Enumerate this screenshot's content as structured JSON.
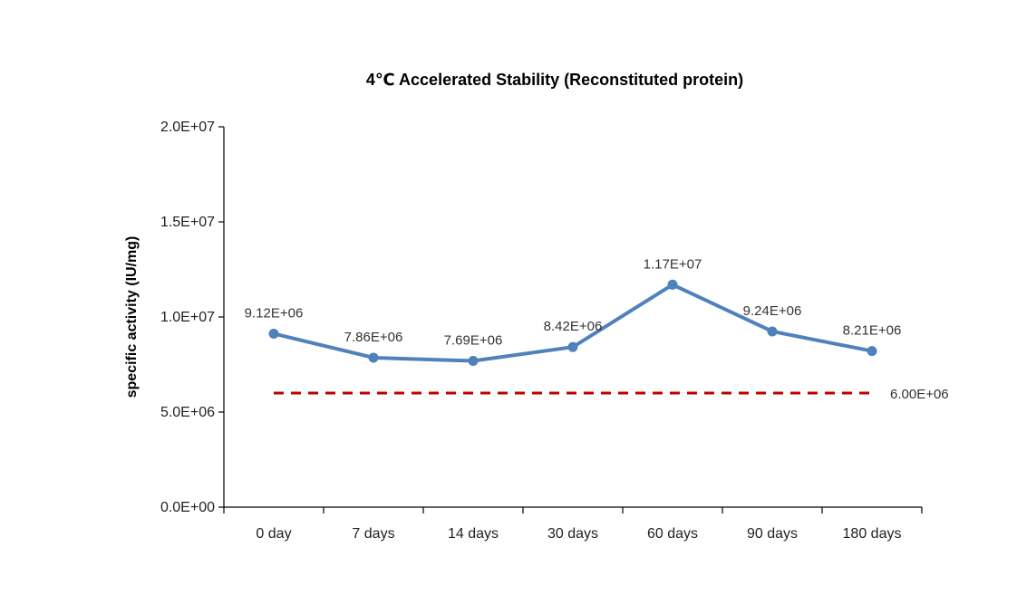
{
  "chart_data": {
    "type": "line",
    "title": "4℃ Accelerated  Stability (Reconstituted protein)",
    "xlabel": "",
    "ylabel": "specific activity (IU/mg)",
    "categories": [
      "0 day",
      "7 days",
      "14 days",
      "30 days",
      "60 days",
      "90 days",
      "180 days"
    ],
    "ylim": [
      0,
      20000000
    ],
    "yticks": [
      0,
      5000000,
      10000000,
      15000000,
      20000000
    ],
    "ytick_labels": [
      "0.0E+00",
      "5.0E+06",
      "1.0E+07",
      "1.5E+07",
      "2.0E+07"
    ],
    "series": [
      {
        "values": [
          9120000,
          7860000,
          7690000,
          8420000,
          11700000,
          9240000,
          8210000
        ],
        "data_labels": [
          "9.12E+06",
          "7.86E+06",
          "7.69E+06",
          "8.42E+06",
          "1.17E+07",
          "9.24E+06",
          "8.21E+06"
        ],
        "color": "#4F81BD",
        "style": "solid",
        "markers": true
      },
      {
        "values": [
          6000000,
          6000000,
          6000000,
          6000000,
          6000000,
          6000000,
          6000000
        ],
        "end_label": "6.00E+06",
        "color": "#C00000",
        "style": "dashed",
        "markers": false
      }
    ],
    "grid": false,
    "legend": "none"
  }
}
